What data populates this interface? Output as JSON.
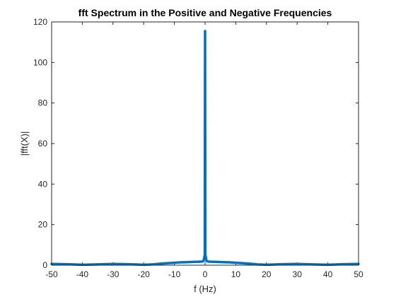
{
  "chart_data": {
    "type": "line",
    "title": "fft Spectrum in the Positive and Negative Frequencies",
    "xlabel": "f (Hz)",
    "ylabel": "|fft(X)|",
    "xlim": [
      -50,
      50
    ],
    "ylim": [
      0,
      120
    ],
    "xticks": [
      -50,
      -40,
      -30,
      -20,
      -10,
      0,
      10,
      20,
      30,
      40,
      50
    ],
    "yticks": [
      0,
      20,
      40,
      60,
      80,
      100,
      120
    ],
    "grid": false,
    "box": true,
    "series": [
      {
        "color": "#0072BD",
        "x": [
          -50,
          -45,
          -40,
          -35,
          -30,
          -25,
          -20,
          -17,
          -15,
          -12,
          -10,
          -8,
          -6,
          -4,
          -2,
          -1,
          -0.5,
          -0.1,
          0,
          0.1,
          0.5,
          1,
          2,
          4,
          6,
          8,
          10,
          12,
          15,
          17,
          20,
          25,
          30,
          35,
          40,
          45,
          50
        ],
        "y": [
          0.6,
          0.5,
          0.2,
          0.4,
          0.6,
          0.5,
          0.2,
          0.4,
          0.7,
          1.0,
          1.2,
          1.4,
          1.5,
          1.6,
          1.7,
          1.8,
          2.0,
          5.0,
          115.5,
          5.0,
          2.0,
          1.8,
          1.7,
          1.6,
          1.5,
          1.4,
          1.2,
          1.0,
          0.7,
          0.4,
          0.2,
          0.5,
          0.6,
          0.4,
          0.2,
          0.5,
          0.6
        ]
      }
    ]
  }
}
